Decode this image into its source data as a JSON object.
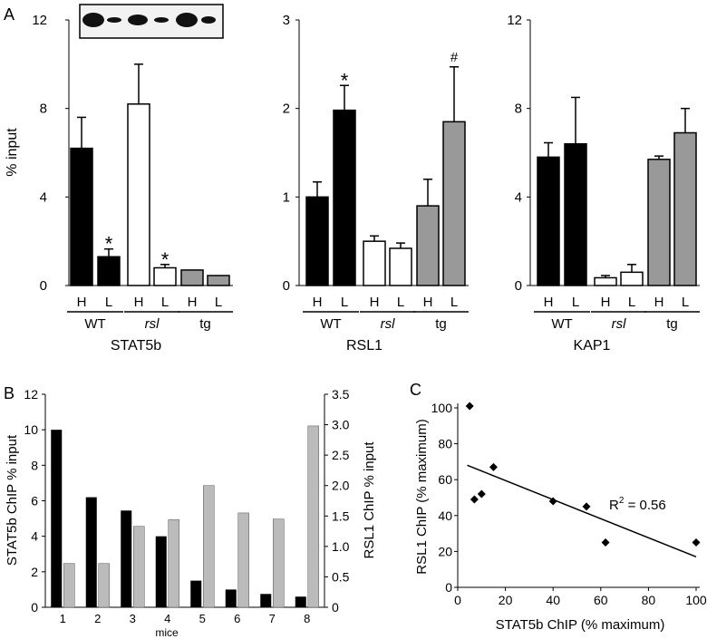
{
  "panel_labels": {
    "a": "A",
    "b": "B",
    "c": "C"
  },
  "chart_data": [
    {
      "id": "stat5b",
      "type": "bar",
      "title": "STAT5b",
      "ylabel": "% input",
      "ylim": [
        0,
        12
      ],
      "yticks": [
        "0",
        "4",
        "8",
        "12"
      ],
      "categories": [
        "H",
        "L",
        "H",
        "L",
        "H",
        "L"
      ],
      "groups": [
        "WT",
        "rsl",
        "tg"
      ],
      "values": [
        6.2,
        1.3,
        8.2,
        0.8,
        0.7,
        0.45
      ],
      "errors": [
        1.4,
        0.35,
        1.8,
        0.15,
        0,
        0
      ],
      "annotations": [
        "",
        "*",
        "",
        "*",
        "",
        ""
      ],
      "colors": [
        "#000000",
        "#000000",
        "#ffffff",
        "#ffffff",
        "#999999",
        "#999999"
      ],
      "inset": "western blot (H, L pairs)"
    },
    {
      "id": "rsl1",
      "type": "bar",
      "title": "RSL1",
      "ylabel": "",
      "ylim": [
        0,
        3
      ],
      "yticks": [
        "0",
        "1",
        "2",
        "3"
      ],
      "categories": [
        "H",
        "L",
        "H",
        "L",
        "H",
        "L"
      ],
      "groups": [
        "WT",
        "rsl",
        "tg"
      ],
      "values": [
        1.0,
        1.98,
        0.5,
        0.42,
        0.9,
        1.85
      ],
      "errors": [
        0.17,
        0.28,
        0.06,
        0.06,
        0.3,
        0.62
      ],
      "annotations": [
        "",
        "*",
        "",
        "",
        "",
        "#"
      ],
      "colors": [
        "#000000",
        "#000000",
        "#ffffff",
        "#ffffff",
        "#999999",
        "#999999"
      ]
    },
    {
      "id": "kap1",
      "type": "bar",
      "title": "KAP1",
      "ylabel": "",
      "ylim": [
        0,
        12
      ],
      "yticks": [
        "0",
        "4",
        "8",
        "12"
      ],
      "categories": [
        "H",
        "L",
        "H",
        "L",
        "H",
        "L"
      ],
      "groups": [
        "WT",
        "rsl",
        "tg"
      ],
      "values": [
        5.8,
        6.4,
        0.35,
        0.6,
        5.7,
        6.9
      ],
      "errors": [
        0.65,
        2.1,
        0.1,
        0.35,
        0.15,
        1.1
      ],
      "annotations": [
        "",
        "",
        "",
        "",
        "",
        ""
      ],
      "colors": [
        "#000000",
        "#000000",
        "#ffffff",
        "#ffffff",
        "#999999",
        "#999999"
      ]
    },
    {
      "id": "mice",
      "type": "bar",
      "xlabel": "mice",
      "categories": [
        "1",
        "2",
        "3",
        "4",
        "5",
        "6",
        "7",
        "8"
      ],
      "left_axis": {
        "label": "STAT5b ChIP % input",
        "ylim": [
          0,
          12
        ],
        "ticks": [
          "0",
          "2",
          "4",
          "6",
          "8",
          "10",
          "12"
        ]
      },
      "right_axis": {
        "label": "RSL1 ChIP % input",
        "ylim": [
          0,
          3.5
        ],
        "ticks": [
          "0",
          "0.5",
          "1.0",
          "1.5",
          "2.0",
          "2.5",
          "3.0",
          "3.5"
        ]
      },
      "series": [
        {
          "axis": "left",
          "color": "#000000",
          "values": [
            10.0,
            6.2,
            5.45,
            4.0,
            1.5,
            1.0,
            0.75,
            0.6
          ]
        },
        {
          "axis": "right",
          "color": "#bbbbbb",
          "values": [
            0.72,
            0.72,
            1.33,
            1.44,
            2.0,
            1.55,
            1.45,
            2.98
          ]
        }
      ]
    },
    {
      "id": "scatter",
      "type": "scatter",
      "xlabel": "STAT5b ChIP (% maximum)",
      "ylabel": "RSL1 ChIP (% maximum)",
      "xlim": [
        0,
        100
      ],
      "ylim": [
        0,
        100
      ],
      "xticks": [
        "0",
        "20",
        "40",
        "60",
        "80",
        "100"
      ],
      "yticks": [
        "0",
        "20",
        "40",
        "60",
        "80",
        "100"
      ],
      "points": [
        [
          5,
          101
        ],
        [
          7,
          49
        ],
        [
          10,
          52
        ],
        [
          15,
          67
        ],
        [
          40,
          48
        ],
        [
          54,
          45
        ],
        [
          62,
          25
        ],
        [
          100,
          25
        ]
      ],
      "fit": [
        [
          4,
          68
        ],
        [
          100,
          17
        ]
      ],
      "r2_label": "R",
      "r2_sup": "2",
      "r2_value": " = 0.56"
    }
  ]
}
